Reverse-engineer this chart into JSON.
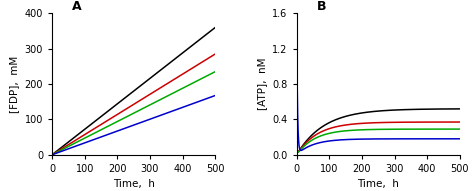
{
  "panel_A": {
    "title": "A",
    "xlabel": "Time,  h",
    "ylabel": "[FDP],  mM",
    "xlim": [
      0,
      500
    ],
    "ylim": [
      0,
      400
    ],
    "xticks": [
      0,
      100,
      200,
      300,
      400,
      500
    ],
    "yticks": [
      0,
      100,
      200,
      300,
      400
    ],
    "lines": [
      {
        "slope": 0.72,
        "color": "#000000"
      },
      {
        "slope": 0.57,
        "color": "#cc0000"
      },
      {
        "slope": 0.47,
        "color": "#00aa00"
      },
      {
        "slope": 0.335,
        "color": "#0000cc"
      }
    ]
  },
  "panel_B": {
    "title": "B",
    "xlabel": "Time,  h",
    "ylabel": "[ATP],  nM",
    "xlim": [
      0,
      500
    ],
    "ylim": [
      0,
      1.6
    ],
    "xticks": [
      0,
      100,
      200,
      300,
      400,
      500
    ],
    "yticks": [
      0.0,
      0.4,
      0.8,
      1.2,
      1.6
    ],
    "curves": [
      {
        "plateau": 0.52,
        "rate": 0.012,
        "spike": 0.56,
        "decay": 0.5,
        "color": "#000000"
      },
      {
        "plateau": 0.37,
        "rate": 0.016,
        "spike": 0.44,
        "decay": 0.5,
        "color": "#cc0000"
      },
      {
        "plateau": 0.29,
        "rate": 0.018,
        "spike": 0.36,
        "decay": 0.5,
        "color": "#00aa00"
      },
      {
        "plateau": 0.18,
        "rate": 0.02,
        "spike": 1.55,
        "decay": 0.4,
        "color": "#0000cc"
      }
    ]
  },
  "background": "#ffffff",
  "title_fontsize": 9,
  "label_fontsize": 7.5,
  "tick_fontsize": 7
}
